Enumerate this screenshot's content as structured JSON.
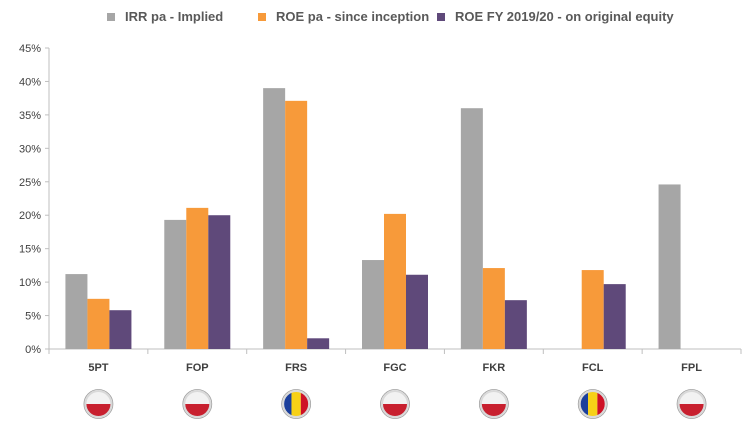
{
  "chart_data": {
    "type": "bar",
    "title": "",
    "xlabel": "",
    "ylabel": "",
    "ylim": [
      0,
      45
    ],
    "yticks": [
      0,
      5,
      10,
      15,
      20,
      25,
      30,
      35,
      40,
      45
    ],
    "ytick_suffix": "%",
    "legend_position": "top",
    "grid": false,
    "categories": [
      "5PT",
      "FOP",
      "FRS",
      "FGC",
      "FKR",
      "FCL",
      "FPL"
    ],
    "flags": [
      "poland",
      "poland",
      "romania",
      "poland",
      "poland",
      "romania",
      "poland"
    ],
    "series": [
      {
        "name": "IRR pa - Implied",
        "color": "#A6A6A6",
        "values": [
          11.2,
          19.3,
          39.0,
          13.3,
          36.0,
          null,
          24.6
        ]
      },
      {
        "name": "ROE pa - since inception",
        "color": "#F79A3A",
        "values": [
          7.5,
          21.1,
          37.1,
          20.2,
          12.1,
          11.8,
          null
        ]
      },
      {
        "name": "ROE FY 2019/20 - on original equity",
        "color": "#5F497A",
        "values": [
          5.8,
          20.0,
          1.6,
          11.1,
          7.3,
          9.7,
          null
        ]
      }
    ]
  }
}
